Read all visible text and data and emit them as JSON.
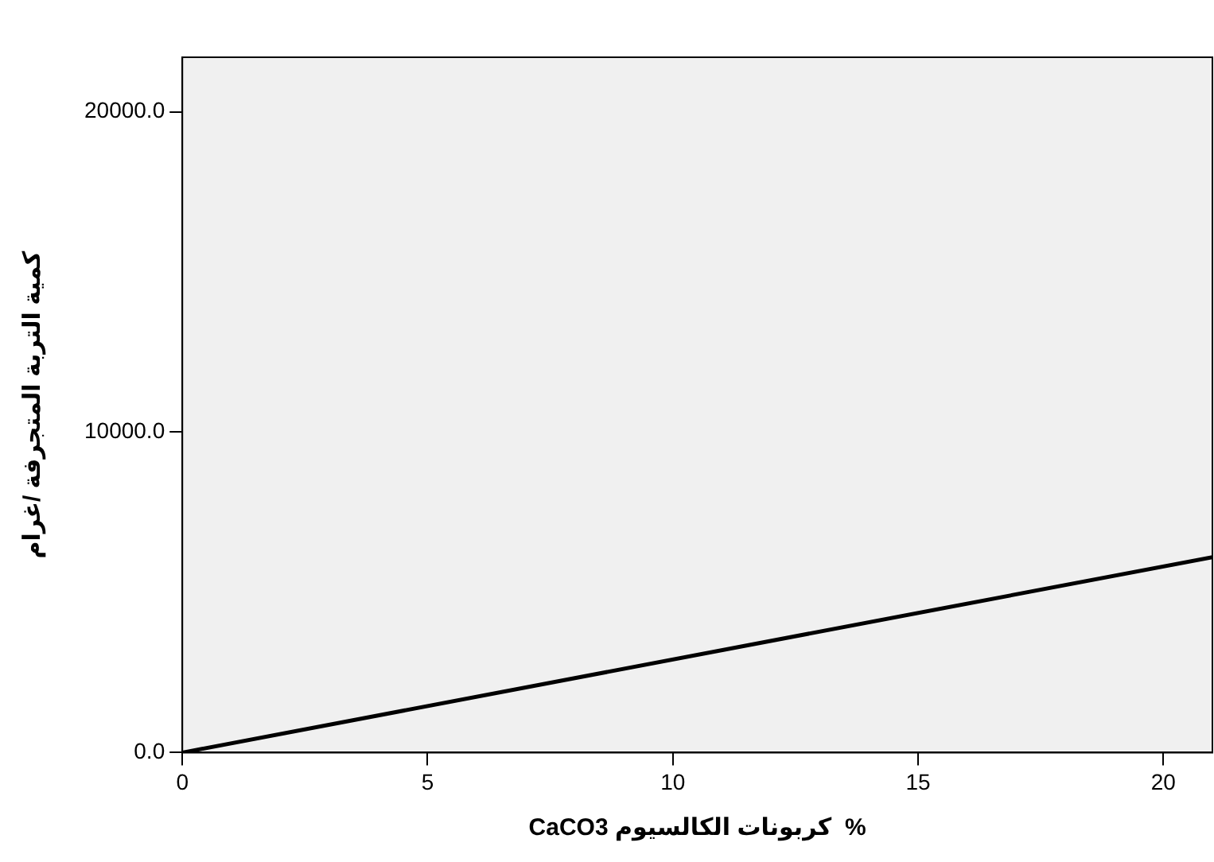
{
  "chart_data": {
    "type": "line",
    "xlabel": "CaCO3 كربونات الكالسيوم  %",
    "ylabel": "كمية التربة المتجرفة /غرام",
    "x": [
      0,
      21
    ],
    "series": [
      {
        "color": "#000000",
        "values": [
          0,
          6100
        ]
      }
    ],
    "xlim": [
      0,
      21
    ],
    "xticks": [
      0,
      5,
      10,
      15,
      20
    ],
    "ylim": [
      0,
      21700
    ],
    "yticks": [
      {
        "value": 0,
        "label": "0.0"
      },
      {
        "value": 10000,
        "label": "10000.0"
      },
      {
        "value": 20000,
        "label": "20000.0"
      }
    ],
    "grid": false,
    "legend": false,
    "marker": "none",
    "line_style": "solid"
  }
}
